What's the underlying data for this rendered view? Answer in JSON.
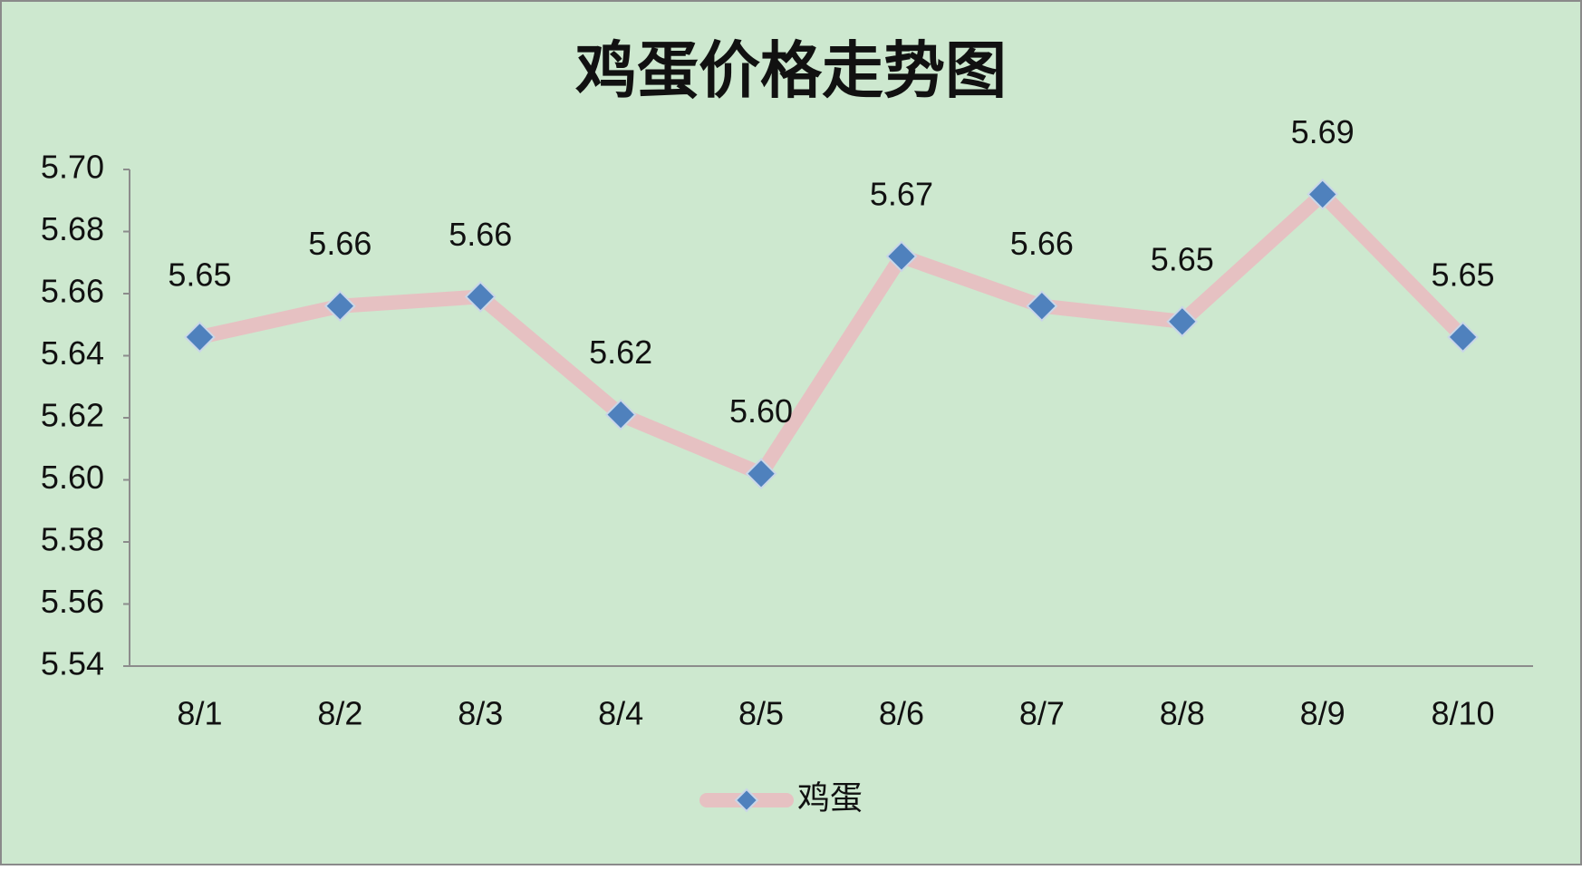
{
  "chart_data": {
    "type": "line",
    "title": "鸡蛋价格走势图",
    "categories": [
      "8/1",
      "8/2",
      "8/3",
      "8/4",
      "8/5",
      "8/6",
      "8/7",
      "8/8",
      "8/9",
      "8/10"
    ],
    "series": [
      {
        "name": "鸡蛋",
        "color": "#e6c1c2",
        "marker_color": "#4f81bd",
        "values": [
          5.646,
          5.656,
          5.659,
          5.621,
          5.602,
          5.672,
          5.656,
          5.651,
          5.692,
          5.646
        ],
        "value_labels": [
          "5.65",
          "5.66",
          "5.66",
          "5.62",
          "5.60",
          "5.67",
          "5.66",
          "5.65",
          "5.69",
          "5.65"
        ]
      }
    ],
    "ylim": [
      5.54,
      5.7
    ],
    "yticks": [
      5.54,
      5.56,
      5.58,
      {
        "value": 5.6,
        "label": "5.60"
      },
      5.62,
      5.64,
      5.66,
      5.68,
      {
        "value": 5.7,
        "label": "5.70"
      }
    ],
    "grid": false,
    "legend": "bottom",
    "background": "#cde8cf"
  }
}
